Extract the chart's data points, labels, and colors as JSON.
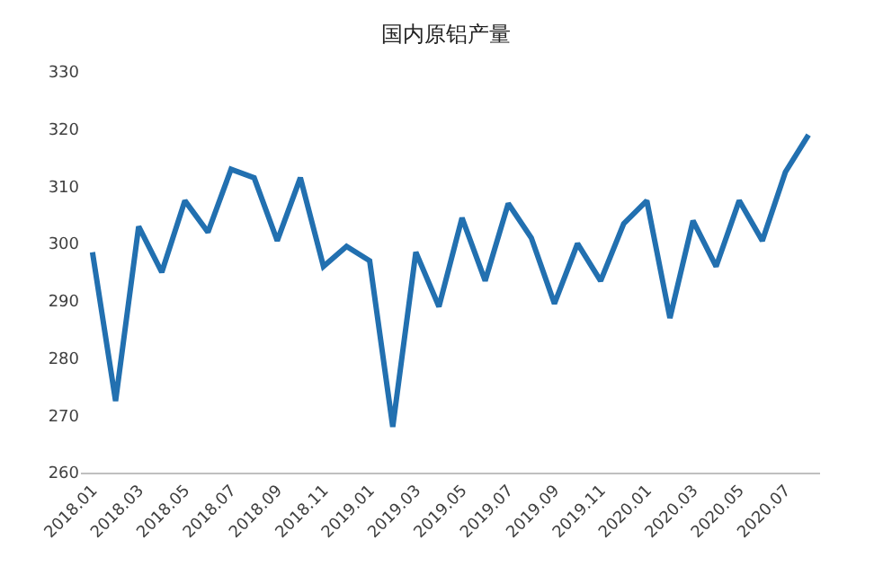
{
  "chart_data": {
    "type": "line",
    "title": "国内原铝产量",
    "categories": [
      "2018.01",
      null,
      "2018.03",
      null,
      "2018.05",
      null,
      "2018.07",
      null,
      "2018.09",
      null,
      "2018.11",
      null,
      "2019.01",
      null,
      "2019.03",
      null,
      "2019.05",
      null,
      "2019.07",
      null,
      "2019.09",
      null,
      "2019.11",
      null,
      "2020.01",
      null,
      "2020.03",
      null,
      "2020.05",
      null,
      "2020.07",
      null
    ],
    "series": [
      {
        "color": "#2270b0",
        "values": [
          298.5,
          272.5,
          303,
          295,
          307.5,
          302,
          313,
          311.5,
          300.5,
          311.5,
          296,
          299.5,
          297,
          268,
          298.5,
          289,
          304.5,
          293.5,
          307,
          301,
          289.5,
          300,
          293.5,
          303.5,
          307.5,
          287,
          304,
          296,
          307.5,
          300.5,
          312.5,
          319
        ]
      }
    ],
    "ylim": [
      260,
      330
    ],
    "yticks": [
      260,
      270,
      280,
      290,
      300,
      310,
      320,
      330
    ],
    "grid": false,
    "marker": "none",
    "line_style": "solid"
  }
}
